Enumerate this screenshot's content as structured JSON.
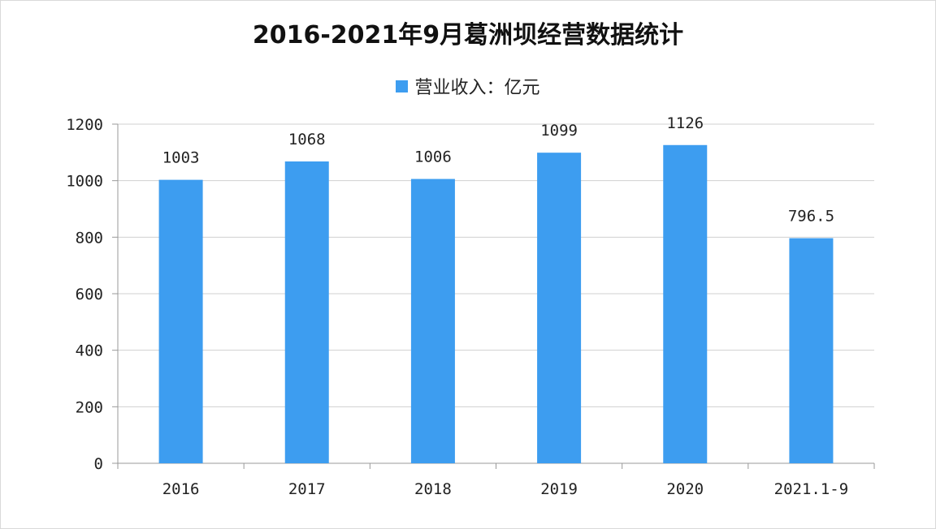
{
  "chart_data": {
    "type": "bar",
    "title": "2016-2021年9月葛洲坝经营数据统计",
    "categories": [
      "2016",
      "2017",
      "2018",
      "2019",
      "2020",
      "2021.1-9"
    ],
    "series": [
      {
        "name": "营业收入：亿元",
        "values": [
          1003,
          1068,
          1006,
          1099,
          1126,
          796.5
        ]
      }
    ],
    "data_labels": [
      "1003",
      "1068",
      "1006",
      "1099",
      "1126",
      "796.5"
    ],
    "ylim": [
      0,
      1200
    ],
    "yticks": [
      0,
      200,
      400,
      600,
      800,
      1000,
      1200
    ],
    "grid": true,
    "legend_position": "top-center",
    "bar_color": "#3d9df0",
    "xlabel": "",
    "ylabel": ""
  }
}
